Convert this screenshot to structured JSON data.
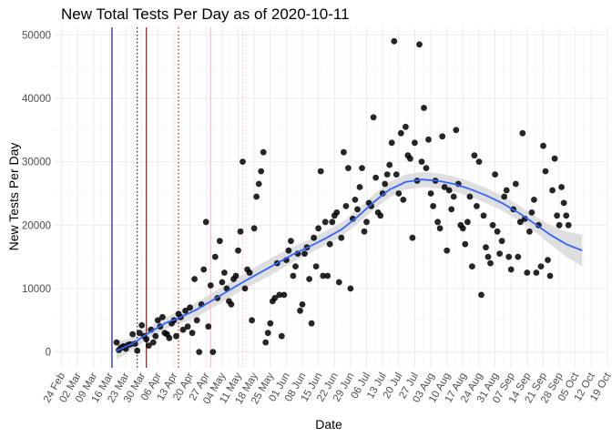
{
  "chart_data": {
    "type": "scatter",
    "title": "New Total Tests Per Day as of 2020-10-11",
    "xlabel": "Date",
    "ylabel": "New Tests Per Day",
    "x_ticks": [
      "24 Feb",
      "02 Mar",
      "09 Mar",
      "16 Mar",
      "23 Mar",
      "30 Mar",
      "06 Apr",
      "13 Apr",
      "20 Apr",
      "27 Apr",
      "04 May",
      "11 May",
      "18 May",
      "25 May",
      "01 Jun",
      "08 Jun",
      "15 Jun",
      "22 Jun",
      "29 Jun",
      "06 Jul",
      "13 Jul",
      "20 Jul",
      "27 Jul",
      "03 Aug",
      "10 Aug",
      "17 Aug",
      "24 Aug",
      "31 Aug",
      "07 Sep",
      "14 Sep",
      "21 Sep",
      "28 Sep",
      "05 Oct",
      "12 Oct",
      "19 Oct"
    ],
    "y_ticks": [
      0,
      10000,
      20000,
      30000,
      40000,
      50000
    ],
    "xlim": [
      "2020-02-21",
      "2020-10-19"
    ],
    "ylim": [
      -2500,
      51200
    ],
    "grid": true,
    "vlines": [
      {
        "date": "2020-03-17",
        "color": "#00008b",
        "style": "solid"
      },
      {
        "date": "2020-03-28",
        "color": "#000000",
        "style": "dotted"
      },
      {
        "date": "2020-04-01",
        "color": "#8b0000",
        "style": "solid"
      },
      {
        "date": "2020-04-15",
        "color": "#cd0000",
        "style": "dotted"
      },
      {
        "date": "2020-04-29",
        "color": "#ffb6c1",
        "style": "solid"
      },
      {
        "date": "2020-05-13",
        "color": "#ffb6c1",
        "style": "dotted"
      }
    ],
    "points": [
      [
        "2020-03-19",
        1500
      ],
      [
        "2020-03-20",
        300
      ],
      [
        "2020-03-21",
        700
      ],
      [
        "2020-03-22",
        900
      ],
      [
        "2020-03-23",
        500
      ],
      [
        "2020-03-24",
        1100
      ],
      [
        "2020-03-25",
        1200
      ],
      [
        "2020-03-26",
        2800
      ],
      [
        "2020-03-27",
        1300
      ],
      [
        "2020-03-28",
        200
      ],
      [
        "2020-03-29",
        3000
      ],
      [
        "2020-03-30",
        4200
      ],
      [
        "2020-03-31",
        2500
      ],
      [
        "2020-04-01",
        2000
      ],
      [
        "2020-04-02",
        1000
      ],
      [
        "2020-04-03",
        3500
      ],
      [
        "2020-04-04",
        1500
      ],
      [
        "2020-04-05",
        2500
      ],
      [
        "2020-04-06",
        5000
      ],
      [
        "2020-04-07",
        4000
      ],
      [
        "2020-04-08",
        5500
      ],
      [
        "2020-04-09",
        3000
      ],
      [
        "2020-04-10",
        2800
      ],
      [
        "2020-04-11",
        2200
      ],
      [
        "2020-04-12",
        4500
      ],
      [
        "2020-04-13",
        5000
      ],
      [
        "2020-04-14",
        2500
      ],
      [
        "2020-04-15",
        6000
      ],
      [
        "2020-04-16",
        5500
      ],
      [
        "2020-04-17",
        3500
      ],
      [
        "2020-04-18",
        6500
      ],
      [
        "2020-04-19",
        4000
      ],
      [
        "2020-04-20",
        7000
      ],
      [
        "2020-04-21",
        3000
      ],
      [
        "2020-04-22",
        11500
      ],
      [
        "2020-04-23",
        5000
      ],
      [
        "2020-04-24",
        0
      ],
      [
        "2020-04-25",
        7500
      ],
      [
        "2020-04-26",
        13000
      ],
      [
        "2020-04-27",
        20500
      ],
      [
        "2020-04-28",
        4000
      ],
      [
        "2020-04-29",
        10500
      ],
      [
        "2020-04-30",
        0
      ],
      [
        "2020-05-01",
        15000
      ],
      [
        "2020-05-02",
        8500
      ],
      [
        "2020-05-03",
        17500
      ],
      [
        "2020-05-04",
        11000
      ],
      [
        "2020-05-05",
        12500
      ],
      [
        "2020-05-06",
        10000
      ],
      [
        "2020-05-07",
        8000
      ],
      [
        "2020-05-08",
        7500
      ],
      [
        "2020-05-09",
        11500
      ],
      [
        "2020-05-10",
        12000
      ],
      [
        "2020-05-11",
        16000
      ],
      [
        "2020-05-12",
        19000
      ],
      [
        "2020-05-13",
        30000
      ],
      [
        "2020-05-14",
        10000
      ],
      [
        "2020-05-15",
        13000
      ],
      [
        "2020-05-16",
        12500
      ],
      [
        "2020-05-17",
        5000
      ],
      [
        "2020-05-18",
        19500
      ],
      [
        "2020-05-19",
        24500
      ],
      [
        "2020-05-20",
        26500
      ],
      [
        "2020-05-21",
        28500
      ],
      [
        "2020-05-22",
        31500
      ],
      [
        "2020-05-23",
        1500
      ],
      [
        "2020-05-24",
        3000
      ],
      [
        "2020-05-25",
        4500
      ],
      [
        "2020-05-26",
        8000
      ],
      [
        "2020-05-27",
        8500
      ],
      [
        "2020-05-28",
        14000
      ],
      [
        "2020-05-29",
        9000
      ],
      [
        "2020-05-30",
        2500
      ],
      [
        "2020-05-31",
        9000
      ],
      [
        "2020-06-01",
        14500
      ],
      [
        "2020-06-02",
        16000
      ],
      [
        "2020-06-03",
        17500
      ],
      [
        "2020-06-04",
        12000
      ],
      [
        "2020-06-05",
        13500
      ],
      [
        "2020-06-06",
        15500
      ],
      [
        "2020-06-07",
        6500
      ],
      [
        "2020-06-08",
        7500
      ],
      [
        "2020-06-09",
        15500
      ],
      [
        "2020-06-10",
        16500
      ],
      [
        "2020-06-11",
        11500
      ],
      [
        "2020-06-12",
        4500
      ],
      [
        "2020-06-13",
        18000
      ],
      [
        "2020-06-14",
        13500
      ],
      [
        "2020-06-15",
        19500
      ],
      [
        "2020-06-16",
        28500
      ],
      [
        "2020-06-17",
        12000
      ],
      [
        "2020-06-18",
        20500
      ],
      [
        "2020-06-19",
        12000
      ],
      [
        "2020-06-20",
        17000
      ],
      [
        "2020-06-21",
        20500
      ],
      [
        "2020-06-22",
        21500
      ],
      [
        "2020-06-23",
        22000
      ],
      [
        "2020-06-24",
        11000
      ],
      [
        "2020-06-25",
        18000
      ],
      [
        "2020-06-26",
        31500
      ],
      [
        "2020-06-27",
        23000
      ],
      [
        "2020-06-28",
        29000
      ],
      [
        "2020-06-29",
        10000
      ],
      [
        "2020-06-30",
        21000
      ],
      [
        "2020-07-01",
        24000
      ],
      [
        "2020-07-02",
        22500
      ],
      [
        "2020-07-03",
        26000
      ],
      [
        "2020-07-04",
        29000
      ],
      [
        "2020-07-05",
        19000
      ],
      [
        "2020-07-06",
        20500
      ],
      [
        "2020-07-07",
        23500
      ],
      [
        "2020-07-08",
        23000
      ],
      [
        "2020-07-09",
        37000
      ],
      [
        "2020-07-10",
        27500
      ],
      [
        "2020-07-11",
        22000
      ],
      [
        "2020-07-12",
        21500
      ],
      [
        "2020-07-13",
        25000
      ],
      [
        "2020-07-14",
        26500
      ],
      [
        "2020-07-15",
        28000
      ],
      [
        "2020-07-16",
        29500
      ],
      [
        "2020-07-17",
        33000
      ],
      [
        "2020-07-18",
        49000
      ],
      [
        "2020-07-19",
        28000
      ],
      [
        "2020-07-20",
        25000
      ],
      [
        "2020-07-21",
        34500
      ],
      [
        "2020-07-22",
        24000
      ],
      [
        "2020-07-23",
        35500
      ],
      [
        "2020-07-24",
        31000
      ],
      [
        "2020-07-25",
        30500
      ],
      [
        "2020-07-26",
        18000
      ],
      [
        "2020-07-27",
        33000
      ],
      [
        "2020-07-28",
        27000
      ],
      [
        "2020-07-29",
        48500
      ],
      [
        "2020-07-30",
        30000
      ],
      [
        "2020-07-31",
        38500
      ],
      [
        "2020-08-01",
        29000
      ],
      [
        "2020-08-02",
        33500
      ],
      [
        "2020-08-03",
        25000
      ],
      [
        "2020-08-04",
        23000
      ],
      [
        "2020-08-05",
        27000
      ],
      [
        "2020-08-06",
        20500
      ],
      [
        "2020-08-07",
        19500
      ],
      [
        "2020-08-08",
        34000
      ],
      [
        "2020-08-09",
        26000
      ],
      [
        "2020-08-10",
        16000
      ],
      [
        "2020-08-11",
        25500
      ],
      [
        "2020-08-12",
        22500
      ],
      [
        "2020-08-13",
        24500
      ],
      [
        "2020-08-14",
        35000
      ],
      [
        "2020-08-15",
        26500
      ],
      [
        "2020-08-16",
        20000
      ],
      [
        "2020-08-17",
        19500
      ],
      [
        "2020-08-18",
        17000
      ],
      [
        "2020-08-19",
        20500
      ],
      [
        "2020-08-20",
        24500
      ],
      [
        "2020-08-21",
        13500
      ],
      [
        "2020-08-22",
        31000
      ],
      [
        "2020-08-23",
        23000
      ],
      [
        "2020-08-24",
        30000
      ],
      [
        "2020-08-25",
        9000
      ],
      [
        "2020-08-26",
        21500
      ],
      [
        "2020-08-27",
        16500
      ],
      [
        "2020-08-28",
        15000
      ],
      [
        "2020-08-29",
        14000
      ],
      [
        "2020-08-30",
        20000
      ],
      [
        "2020-08-31",
        28000
      ],
      [
        "2020-09-01",
        19000
      ],
      [
        "2020-09-02",
        15500
      ],
      [
        "2020-09-03",
        17500
      ],
      [
        "2020-09-04",
        24500
      ],
      [
        "2020-09-05",
        25500
      ],
      [
        "2020-09-06",
        15000
      ],
      [
        "2020-09-07",
        13000
      ],
      [
        "2020-09-08",
        22500
      ],
      [
        "2020-09-09",
        26500
      ],
      [
        "2020-09-10",
        15000
      ],
      [
        "2020-09-11",
        20500
      ],
      [
        "2020-09-12",
        34500
      ],
      [
        "2020-09-13",
        21000
      ],
      [
        "2020-09-14",
        12500
      ],
      [
        "2020-09-15",
        19000
      ],
      [
        "2020-09-16",
        22000
      ],
      [
        "2020-09-17",
        24000
      ],
      [
        "2020-09-18",
        12500
      ],
      [
        "2020-09-19",
        20000
      ],
      [
        "2020-09-20",
        13500
      ],
      [
        "2020-09-21",
        32500
      ],
      [
        "2020-09-22",
        28500
      ],
      [
        "2020-09-23",
        14500
      ],
      [
        "2020-09-24",
        12000
      ],
      [
        "2020-09-25",
        25500
      ],
      [
        "2020-09-26",
        30500
      ],
      [
        "2020-09-27",
        21500
      ],
      [
        "2020-09-28",
        20000
      ],
      [
        "2020-09-29",
        26000
      ],
      [
        "2020-09-30",
        23500
      ],
      [
        "2020-10-01",
        21500
      ],
      [
        "2020-10-02",
        20000
      ]
    ],
    "smooth": {
      "color": "#3366ff",
      "band_color": "#d9d9d9",
      "line": [
        [
          "2020-03-19",
          200,
          -1200,
          1600
        ],
        [
          "2020-03-26",
          1300,
          300,
          2300
        ],
        [
          "2020-04-02",
          3000,
          2100,
          3900
        ],
        [
          "2020-04-09",
          4500,
          3600,
          5400
        ],
        [
          "2020-04-16",
          5500,
          4500,
          6500
        ],
        [
          "2020-04-23",
          6700,
          5500,
          7900
        ],
        [
          "2020-04-30",
          8200,
          7000,
          9400
        ],
        [
          "2020-05-07",
          9700,
          8500,
          10900
        ],
        [
          "2020-05-14",
          11200,
          10000,
          12400
        ],
        [
          "2020-05-21",
          12600,
          11300,
          13900
        ],
        [
          "2020-05-28",
          14000,
          12700,
          15300
        ],
        [
          "2020-06-04",
          15400,
          14200,
          16600
        ],
        [
          "2020-06-11",
          16600,
          15500,
          17700
        ],
        [
          "2020-06-18",
          17900,
          16800,
          19000
        ],
        [
          "2020-06-25",
          19300,
          18200,
          20400
        ],
        [
          "2020-07-02",
          21300,
          20200,
          22400
        ],
        [
          "2020-07-09",
          23600,
          22400,
          24800
        ],
        [
          "2020-07-16",
          25600,
          24400,
          26800
        ],
        [
          "2020-07-23",
          26800,
          25600,
          28000
        ],
        [
          "2020-07-30",
          27200,
          26000,
          28400
        ],
        [
          "2020-08-06",
          27000,
          25800,
          28200
        ],
        [
          "2020-08-13",
          26500,
          25300,
          27700
        ],
        [
          "2020-08-20",
          25700,
          24500,
          26900
        ],
        [
          "2020-08-27",
          24700,
          23500,
          25900
        ],
        [
          "2020-09-03",
          23500,
          22300,
          24700
        ],
        [
          "2020-09-10",
          22000,
          20800,
          23200
        ],
        [
          "2020-09-17",
          20300,
          19100,
          21500
        ],
        [
          "2020-09-24",
          18500,
          17000,
          20000
        ],
        [
          "2020-10-01",
          17000,
          15000,
          19000
        ],
        [
          "2020-10-08",
          16000,
          13500,
          18500
        ]
      ]
    }
  }
}
